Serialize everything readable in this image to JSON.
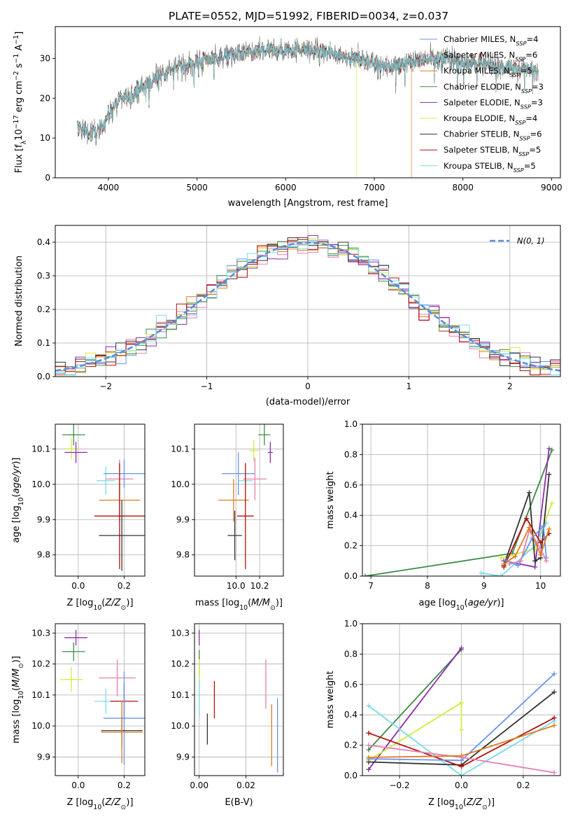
{
  "title": "PLATE=0552, MJD=51992, FIBERID=0034, z=0.037",
  "colors": {
    "chabrier_miles": "#6495ed",
    "salpeter_miles": "#e67fb4",
    "kroupa_miles": "#e07b1f",
    "chabrier_elodie": "#3c8c46",
    "salpeter_elodie": "#8c2daa",
    "kroupa_elodie": "#d2ec3c",
    "chabrier_stelib": "#333333",
    "salpeter_stelib": "#b40f0f",
    "kroupa_stelib": "#78dce6",
    "normal_curve": "#5a8cdc",
    "grid": "#b0b0b0"
  },
  "chart_data": [
    {
      "id": "spectrum",
      "type": "line",
      "xlabel": "wavelength [Angstrom, rest frame]",
      "ylabel": "Flux [f_λ 10^-17 erg cm^-2 s^-1 A^-1]",
      "xlim": [
        3400,
        9100
      ],
      "ylim": [
        0,
        38
      ],
      "xticks": [
        4000,
        5000,
        6000,
        7000,
        8000,
        9000
      ],
      "yticks": [
        0,
        10,
        20,
        30
      ],
      "grid": false,
      "legend_position": "right",
      "legend": [
        {
          "model": "Chabrier MILES",
          "n": "4",
          "color_key": "chabrier_miles"
        },
        {
          "model": "Salpeter MILES",
          "n": "6",
          "color_key": "salpeter_miles"
        },
        {
          "model": "Kroupa MILES",
          "n": "5",
          "color_key": "kroupa_miles"
        },
        {
          "model": "Chabrier ELODIE",
          "n": "3",
          "color_key": "chabrier_elodie"
        },
        {
          "model": "Salpeter ELODIE",
          "n": "3",
          "color_key": "salpeter_elodie"
        },
        {
          "model": "Kroupa ELODIE",
          "n": "4",
          "color_key": "kroupa_elodie"
        },
        {
          "model": "Chabrier STELIB",
          "n": "6",
          "color_key": "chabrier_stelib"
        },
        {
          "model": "Salpeter STELIB",
          "n": "5",
          "color_key": "salpeter_stelib"
        },
        {
          "model": "Kroupa STELIB",
          "n": "5",
          "color_key": "kroupa_stelib"
        }
      ],
      "continuum": {
        "x": [
          3650,
          3800,
          3900,
          4000,
          4100,
          4250,
          4400,
          4600,
          4800,
          5000,
          5200,
          5400,
          5600,
          5800,
          6000,
          6200,
          6400,
          6600,
          6800,
          7000,
          7200,
          7400,
          7600,
          7800,
          8000,
          8200,
          8400,
          8600,
          8850
        ],
        "y": [
          13,
          11,
          12,
          16,
          19,
          21,
          23,
          26,
          28,
          29,
          30,
          31,
          31.5,
          32,
          32,
          32.5,
          31.5,
          31,
          30,
          29,
          28,
          29,
          30,
          30,
          29,
          28.5,
          28,
          27.5,
          27
        ]
      },
      "model_drops": [
        {
          "model": "Kroupa ELODIE",
          "x": 6800,
          "y_to": 0
        },
        {
          "model": "Kroupa MILES",
          "x": 7420,
          "y_to": 0
        }
      ]
    },
    {
      "id": "residuals",
      "type": "histogram",
      "xlabel": "(data-model)/error",
      "ylabel": "Normed distribution",
      "xlim": [
        -2.5,
        2.5
      ],
      "ylim": [
        0,
        0.45
      ],
      "xticks": [
        -2,
        -1,
        0,
        1,
        2
      ],
      "yticks": [
        0.0,
        0.1,
        0.2,
        0.3,
        0.4
      ],
      "grid": true,
      "legend_position": "top-right",
      "legend_label": "N(0, 1)",
      "bin_width": 0.1,
      "series_note": "one histogram per model, values follow N(0,1) with scatter of about 0.03"
    },
    {
      "id": "age_vs_Z",
      "type": "errorbar",
      "xlabel": "Z [log10(Z/Z_sun)]",
      "ylabel": "age [log10(age/yr)]",
      "xlim": [
        -0.1,
        0.29
      ],
      "ylim": [
        9.74,
        10.17
      ],
      "xticks": [
        0.0,
        0.2
      ],
      "yticks": [
        9.8,
        9.9,
        10.0,
        10.1
      ],
      "grid": true,
      "points": [
        {
          "model": "Chabrier ELODIE",
          "x": -0.02,
          "y": 10.14,
          "xerr": 0.05,
          "yerr": 0.03
        },
        {
          "model": "Kroupa ELODIE",
          "x": -0.03,
          "y": 10.1,
          "xerr": 0.03,
          "yerr": 0.03
        },
        {
          "model": "Salpeter ELODIE",
          "x": -0.01,
          "y": 10.09,
          "xerr": 0.05,
          "yerr": 0.03
        },
        {
          "model": "Kroupa STELIB",
          "x": 0.12,
          "y": 10.01,
          "xerr": 0.04,
          "yerr": 0.04
        },
        {
          "model": "Salpeter MILES",
          "x": 0.18,
          "y": 10.015,
          "xerr": 0.06,
          "yerr": 0.055
        },
        {
          "model": "Chabrier MILES",
          "x": 0.2,
          "y": 10.03,
          "xerr": 0.09,
          "yerr": 0.04
        },
        {
          "model": "Kroupa MILES",
          "x": 0.18,
          "y": 9.955,
          "xerr": 0.09,
          "yerr": 0.06
        },
        {
          "model": "Salpeter STELIB",
          "x": 0.18,
          "y": 9.91,
          "xerr": 0.11,
          "yerr": 0.15
        },
        {
          "model": "Chabrier STELIB",
          "x": 0.19,
          "y": 9.855,
          "xerr": 0.1,
          "yerr": 0.1
        }
      ]
    },
    {
      "id": "age_vs_mass",
      "type": "errorbar",
      "xlabel": "mass [log10(M/M_sun)]",
      "ylabel": "",
      "xlim": [
        9.65,
        10.4
      ],
      "ylim": [
        9.74,
        10.17
      ],
      "xticks": [
        10.0,
        10.2
      ],
      "yticks": [
        9.8,
        9.9,
        10.0,
        10.1
      ],
      "grid": true,
      "points": [
        {
          "model": "Chabrier ELODIE",
          "x": 10.24,
          "y": 10.14,
          "xerr": 0.05,
          "yerr": 0.03
        },
        {
          "model": "Kroupa ELODIE",
          "x": 10.15,
          "y": 10.095,
          "xerr": 0.04,
          "yerr": 0.03
        },
        {
          "model": "Salpeter ELODIE",
          "x": 10.29,
          "y": 10.09,
          "xerr": 0.02,
          "yerr": 0.03
        },
        {
          "model": "Salpeter MILES",
          "x": 10.16,
          "y": 10.015,
          "xerr": 0.1,
          "yerr": 0.06
        },
        {
          "model": "Chabrier MILES",
          "x": 10.02,
          "y": 10.03,
          "xerr": 0.14,
          "yerr": 0.06
        },
        {
          "model": "Kroupa STELIB",
          "x": 10.08,
          "y": 10.01,
          "xerr": 0.06,
          "yerr": 0.04
        },
        {
          "model": "Kroupa MILES",
          "x": 9.98,
          "y": 9.955,
          "xerr": 0.13,
          "yerr": 0.06
        },
        {
          "model": "Salpeter STELIB",
          "x": 10.08,
          "y": 9.91,
          "xerr": 0.07,
          "yerr": 0.15
        },
        {
          "model": "Chabrier STELIB",
          "x": 9.99,
          "y": 9.855,
          "xerr": 0.06,
          "yerr": 0.07
        }
      ]
    },
    {
      "id": "weight_vs_age",
      "type": "line",
      "xlabel": "age [log10(age/yr)]",
      "ylabel": "mass weight",
      "xlim": [
        6.85,
        10.35
      ],
      "ylim": [
        0,
        1.0
      ],
      "xticks": [
        7,
        8,
        9,
        10
      ],
      "yticks": [
        0.0,
        0.2,
        0.4,
        0.6,
        0.8,
        1.0
      ],
      "grid": true,
      "series": [
        {
          "model": "Chabrier ELODIE",
          "x": [
            6.9,
            9.5,
            10.2
          ],
          "y": [
            0.0,
            0.15,
            0.83
          ]
        },
        {
          "model": "Salpeter ELODIE",
          "x": [
            9.35,
            9.9,
            10.15
          ],
          "y": [
            0.1,
            0.06,
            0.84
          ]
        },
        {
          "model": "Kroupa ELODIE",
          "x": [
            9.3,
            9.9,
            10.2
          ],
          "y": [
            0.12,
            0.18,
            0.48
          ]
        },
        {
          "model": "Kroupa STELIB",
          "x": [
            8.95,
            9.3,
            9.9,
            10.1
          ],
          "y": [
            0.02,
            0.0,
            0.2,
            0.35
          ]
        },
        {
          "model": "Chabrier STELIB",
          "x": [
            9.35,
            9.8,
            9.9,
            10.0,
            10.15
          ],
          "y": [
            0.07,
            0.55,
            0.1,
            0.12,
            0.67
          ]
        },
        {
          "model": "Salpeter STELIB",
          "x": [
            9.35,
            9.75,
            10.0,
            10.15
          ],
          "y": [
            0.06,
            0.38,
            0.22,
            0.28
          ]
        },
        {
          "model": "Chabrier MILES",
          "x": [
            9.4,
            9.6,
            9.85,
            10.05,
            10.1
          ],
          "y": [
            0.1,
            0.07,
            0.25,
            0.33,
            0.12
          ]
        },
        {
          "model": "Salpeter MILES",
          "x": [
            9.45,
            9.65,
            9.8,
            10.0,
            10.1
          ],
          "y": [
            0.08,
            0.1,
            0.3,
            0.18,
            0.1
          ]
        },
        {
          "model": "Kroupa MILES",
          "x": [
            9.35,
            9.55,
            9.8,
            10.0,
            10.15
          ],
          "y": [
            0.08,
            0.13,
            0.32,
            0.14,
            0.31
          ]
        }
      ]
    },
    {
      "id": "mass_vs_Z",
      "type": "errorbar",
      "xlabel": "Z [log10(Z/Z_sun)]",
      "ylabel": "mass [log10(M/M_sun)]",
      "xlim": [
        -0.1,
        0.29
      ],
      "ylim": [
        9.84,
        10.33
      ],
      "xticks": [
        0.0,
        0.2
      ],
      "yticks": [
        9.9,
        10.0,
        10.1,
        10.2,
        10.3
      ],
      "grid": true,
      "points": [
        {
          "model": "Salpeter ELODIE",
          "x": -0.01,
          "y": 10.285,
          "xerr": 0.05,
          "yerr": 0.025
        },
        {
          "model": "Chabrier ELODIE",
          "x": -0.02,
          "y": 10.24,
          "xerr": 0.05,
          "yerr": 0.03
        },
        {
          "model": "Kroupa ELODIE",
          "x": -0.03,
          "y": 10.15,
          "xerr": 0.05,
          "yerr": 0.04
        },
        {
          "model": "Salpeter MILES",
          "x": 0.17,
          "y": 10.155,
          "xerr": 0.08,
          "yerr": 0.06
        },
        {
          "model": "Kroupa STELIB",
          "x": 0.12,
          "y": 10.08,
          "xerr": 0.05,
          "yerr": 0.04
        },
        {
          "model": "Salpeter STELIB",
          "x": 0.2,
          "y": 10.08,
          "xerr": 0.06,
          "yerr": 0.06
        },
        {
          "model": "Chabrier MILES",
          "x": 0.2,
          "y": 10.025,
          "xerr": 0.09,
          "yerr": 0.15
        },
        {
          "model": "Chabrier STELIB",
          "x": 0.19,
          "y": 9.985,
          "xerr": 0.09,
          "yerr": 0.05
        },
        {
          "model": "Kroupa MILES",
          "x": 0.19,
          "y": 9.98,
          "xerr": 0.09,
          "yerr": 0.1
        }
      ]
    },
    {
      "id": "mass_vs_ebv",
      "type": "errorbar",
      "xlabel": "E(B-V)",
      "ylabel": "",
      "xlim": [
        -0.002,
        0.036
      ],
      "ylim": [
        9.84,
        10.33
      ],
      "xticks": [
        0.0,
        0.02
      ],
      "yticks": [
        9.9,
        10.0,
        10.1,
        10.2,
        10.3
      ],
      "grid": true,
      "points": [
        {
          "model": "Salpeter ELODIE",
          "x": 0.0,
          "y": 10.285,
          "xerr": 0.0,
          "yerr": 0.025
        },
        {
          "model": "Chabrier ELODIE",
          "x": 0.0,
          "y": 10.2,
          "xerr": 0.0,
          "yerr": 0.045
        },
        {
          "model": "Kroupa ELODIE",
          "x": 0.0,
          "y": 10.165,
          "xerr": 0.0,
          "yerr": 0.05
        },
        {
          "model": "Kroupa STELIB",
          "x": 0.0,
          "y": 10.09,
          "xerr": 0.0,
          "yerr": 0.06
        },
        {
          "model": "Salpeter STELIB",
          "x": 0.0065,
          "y": 10.085,
          "xerr": 0.0,
          "yerr": 0.06
        },
        {
          "model": "Chabrier STELIB",
          "x": 0.0035,
          "y": 9.99,
          "xerr": 0.0,
          "yerr": 0.05
        },
        {
          "model": "Salpeter MILES",
          "x": 0.0285,
          "y": 10.135,
          "xerr": 0.0,
          "yerr": 0.08
        },
        {
          "model": "Kroupa MILES",
          "x": 0.031,
          "y": 9.97,
          "xerr": 0.0,
          "yerr": 0.1
        },
        {
          "model": "Chabrier MILES",
          "x": 0.0335,
          "y": 9.97,
          "xerr": 0.0,
          "yerr": 0.12
        }
      ]
    },
    {
      "id": "weight_vs_Z",
      "type": "line",
      "xlabel": "Z [log10(Z/Z_sun)]",
      "ylabel": "mass weight",
      "xlim": [
        -0.32,
        0.32
      ],
      "ylim": [
        0,
        1.0
      ],
      "xticks": [
        -0.2,
        0.0,
        0.2
      ],
      "yticks": [
        0.0,
        0.2,
        0.4,
        0.6,
        0.8,
        1.0
      ],
      "grid": true,
      "series": [
        {
          "model": "Chabrier ELODIE",
          "x": [
            -0.3,
            0.0
          ],
          "y": [
            0.17,
            0.83
          ]
        },
        {
          "model": "Salpeter ELODIE",
          "x": [
            -0.3,
            0.0
          ],
          "y": [
            0.04,
            0.84
          ]
        },
        {
          "model": "Kroupa ELODIE",
          "x": [
            -0.3,
            0.0,
            0.0
          ],
          "y": [
            0.1,
            0.48,
            0.3
          ]
        },
        {
          "model": "Kroupa STELIB",
          "x": [
            -0.3,
            0.0,
            0.3
          ],
          "y": [
            0.46,
            0.0,
            0.36
          ]
        },
        {
          "model": "Chabrier STELIB",
          "x": [
            -0.3,
            0.0,
            0.3
          ],
          "y": [
            0.09,
            0.07,
            0.55
          ]
        },
        {
          "model": "Salpeter STELIB",
          "x": [
            -0.3,
            0.0,
            0.3
          ],
          "y": [
            0.28,
            0.06,
            0.38
          ]
        },
        {
          "model": "Chabrier MILES",
          "x": [
            -0.3,
            0.0,
            0.3
          ],
          "y": [
            0.11,
            0.1,
            0.67
          ]
        },
        {
          "model": "Salpeter MILES",
          "x": [
            -0.3,
            0.0,
            0.3
          ],
          "y": [
            0.2,
            0.12,
            0.02
          ]
        },
        {
          "model": "Kroupa MILES",
          "x": [
            -0.3,
            0.0,
            0.3
          ],
          "y": [
            0.12,
            0.13,
            0.33
          ]
        }
      ]
    }
  ]
}
